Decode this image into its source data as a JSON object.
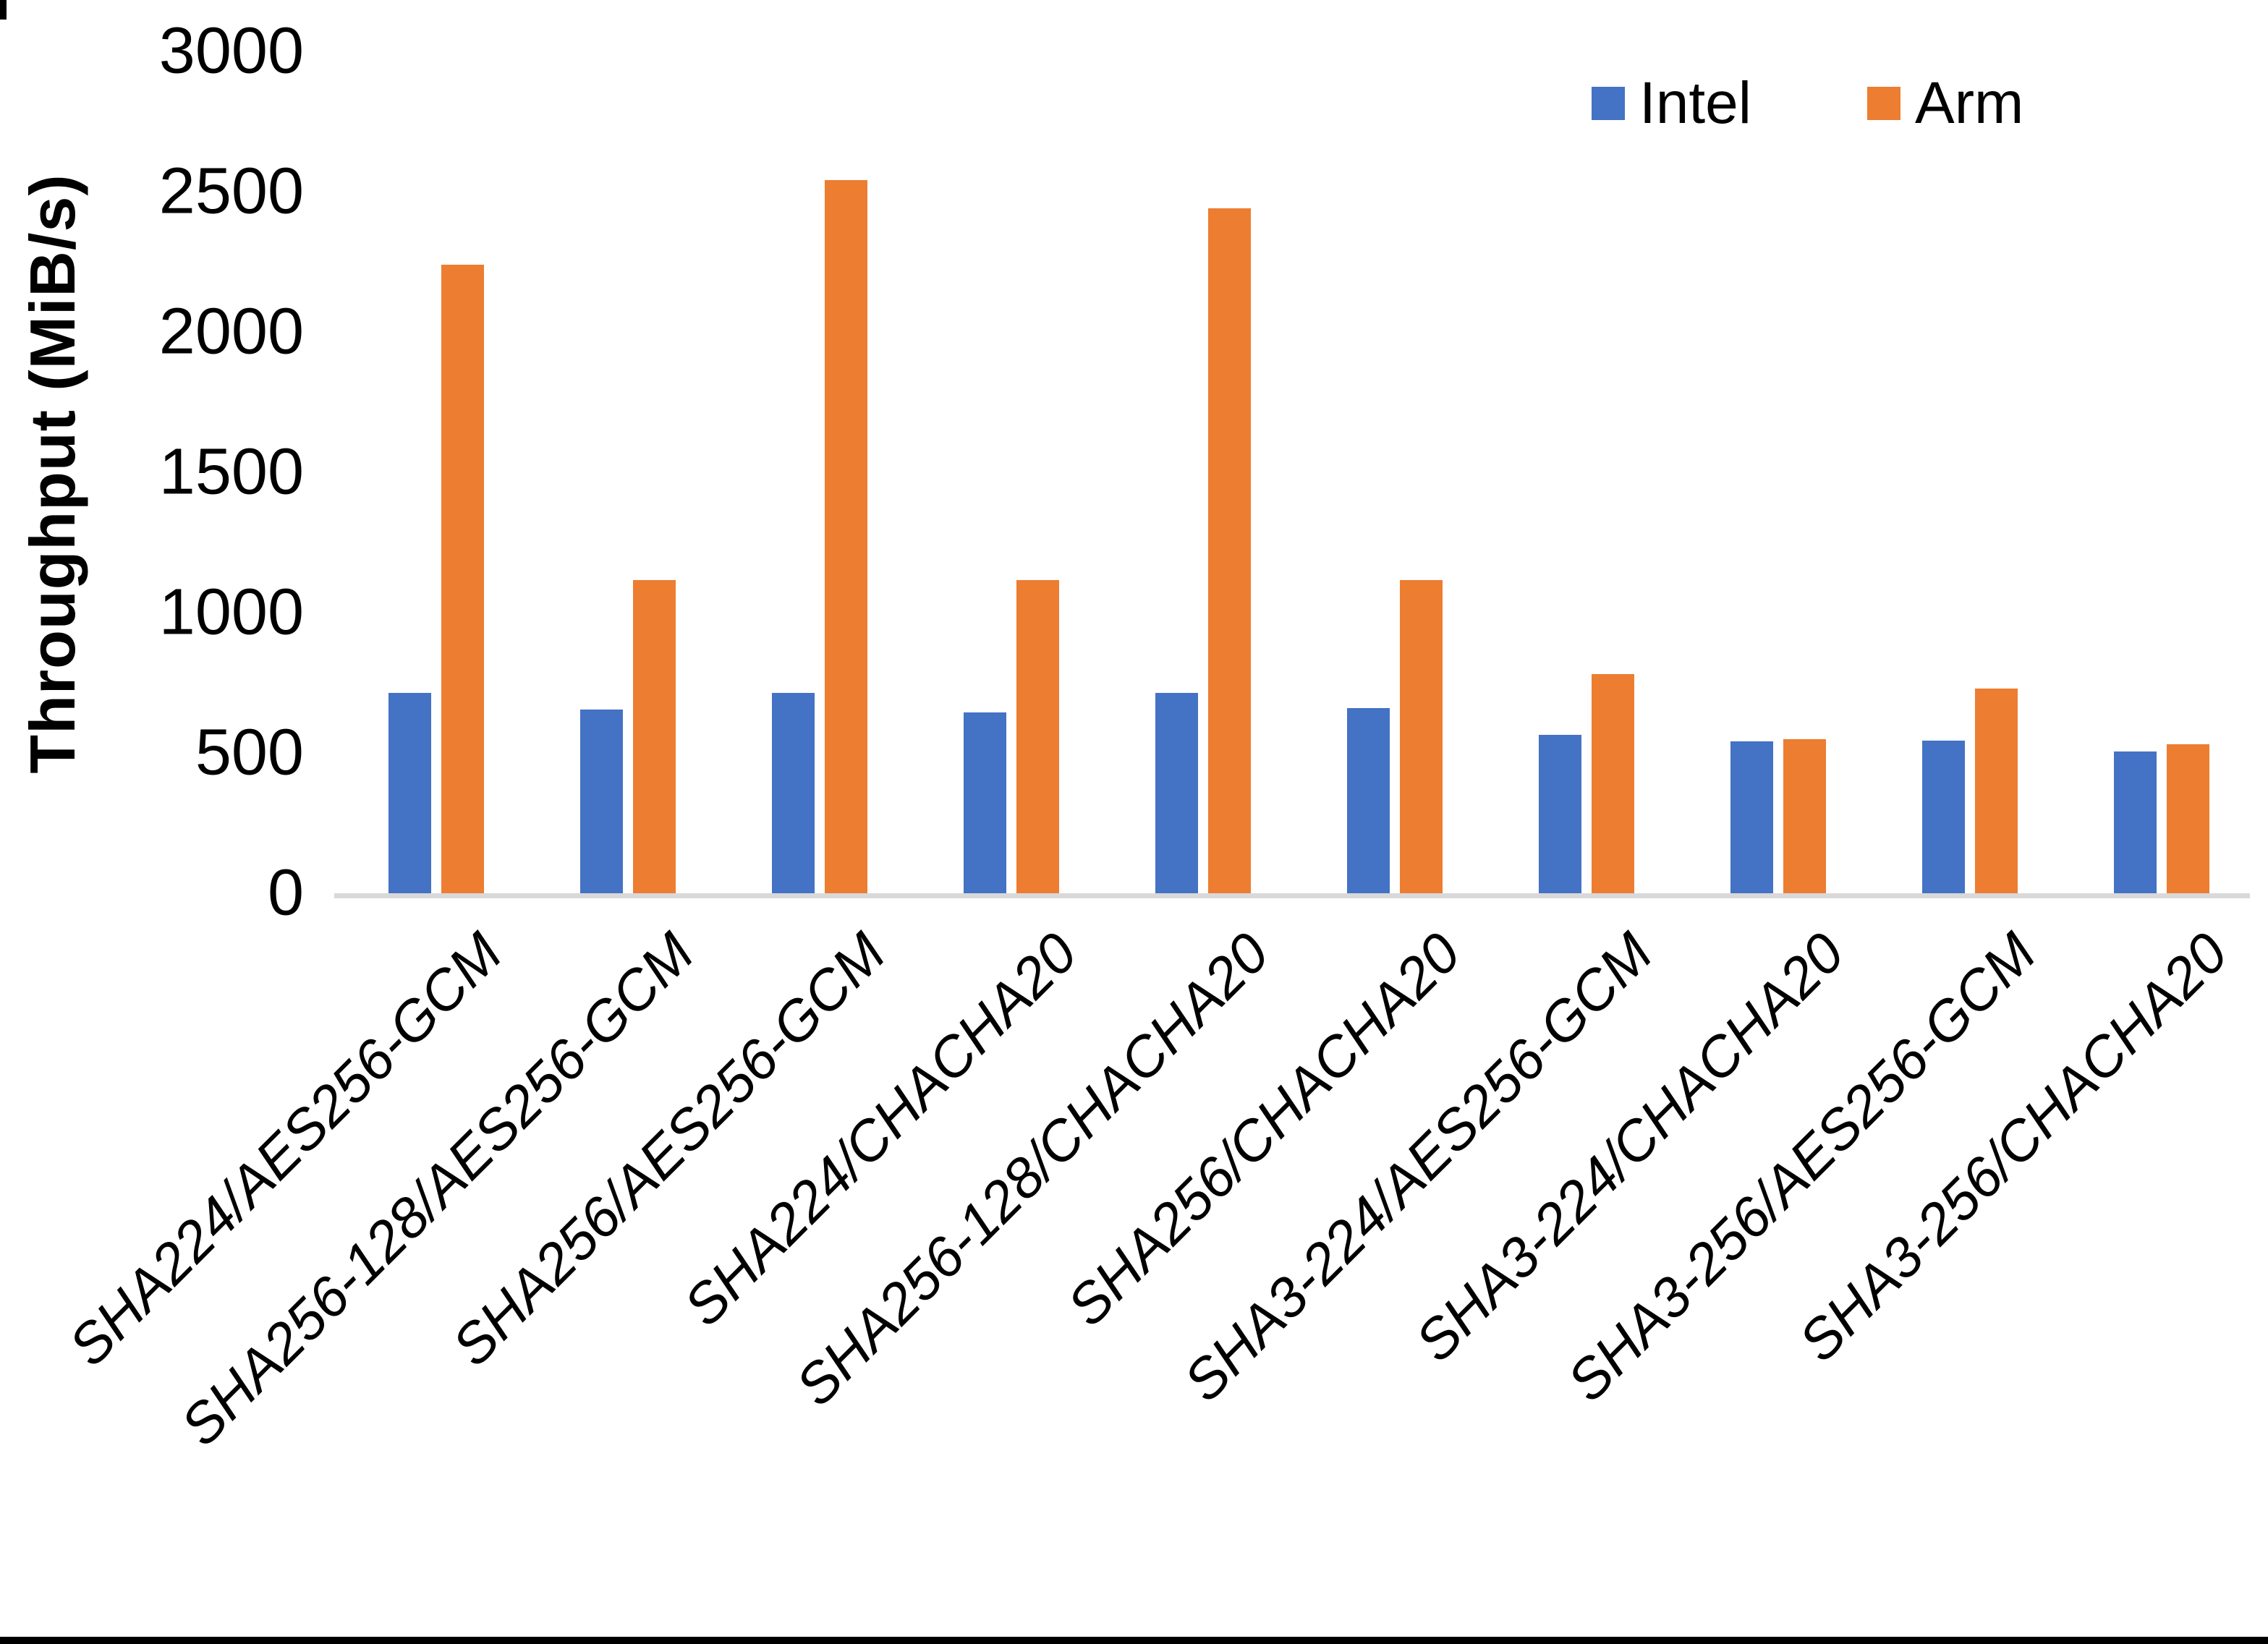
{
  "chart_data": {
    "type": "bar",
    "title": "",
    "xlabel": "",
    "ylabel": "Throughput (MiB/s)",
    "ylim": [
      0,
      3000
    ],
    "yticks": [
      0,
      500,
      1000,
      1500,
      2000,
      2500,
      3000
    ],
    "grid": false,
    "legend_position": "top-right-inside",
    "categories": [
      "SHA224/AES256-GCM",
      "SHA256-128/AES256-GCM",
      "SHA256/AES256-GCM",
      "SHA224/CHACHA20",
      "SHA256-128/CHACHA20",
      "SHA256/CHACHA20",
      "SHA3-224/AES256-GCM",
      "SHA3-224/CHACHA20",
      "SHA3-256/AES256-GCM",
      "SHA3-256/CHACHA20"
    ],
    "series": [
      {
        "name": "Intel",
        "color": "#4472C4",
        "values": [
          715,
          655,
          715,
          645,
          715,
          660,
          565,
          540,
          545,
          505
        ]
      },
      {
        "name": "Arm",
        "color": "#ED7D31",
        "values": [
          2240,
          1115,
          2540,
          1115,
          2440,
          1115,
          780,
          550,
          730,
          530
        ]
      }
    ],
    "colors": {
      "background": "#FFFFFF",
      "axis_line": "#D9D9D9",
      "text": "#000000",
      "frame": "#000000"
    }
  }
}
